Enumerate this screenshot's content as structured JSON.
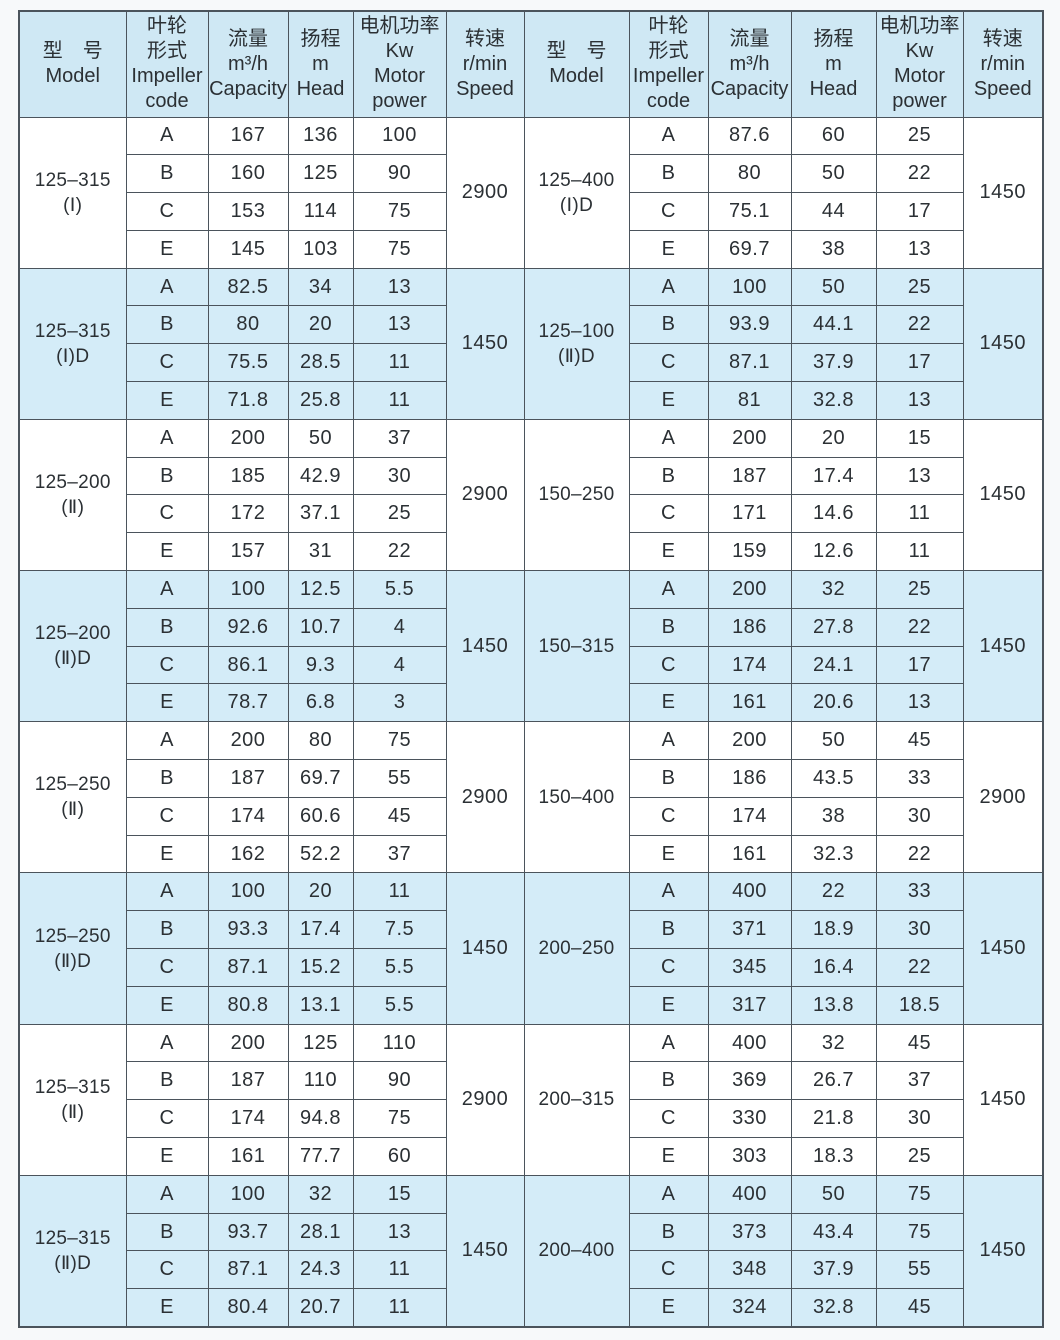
{
  "page": {
    "background": "#f7f9fa"
  },
  "table": {
    "colors": {
      "header_bg": "#cfe8f4",
      "shaded_row_bg": "#d4ecf8",
      "white_row_bg": "#ffffff",
      "border": "#4b545c",
      "text": "#2b3034"
    },
    "header": {
      "cells": [
        {
          "key": "model",
          "lines": [
            "型　号",
            "Model"
          ]
        },
        {
          "key": "impeller",
          "lines": [
            "叶轮",
            "形式",
            "Impeller",
            "code"
          ]
        },
        {
          "key": "capacity",
          "lines": [
            "流量",
            "m³/h",
            "Capacity"
          ]
        },
        {
          "key": "head",
          "lines": [
            "扬程",
            "m",
            "Head"
          ]
        },
        {
          "key": "power",
          "lines": [
            "电机功率",
            "Kw",
            "Motor",
            "power"
          ]
        },
        {
          "key": "speed",
          "lines": [
            "转速",
            "r/min",
            "Speed"
          ]
        }
      ]
    },
    "groups": [
      {
        "shaded": false,
        "left": {
          "model": [
            "125–315",
            "(Ⅰ)"
          ],
          "speed": "2900",
          "rows": [
            [
              "A",
              "167",
              "136",
              "100"
            ],
            [
              "B",
              "160",
              "125",
              "90"
            ],
            [
              "C",
              "153",
              "114",
              "75"
            ],
            [
              "E",
              "145",
              "103",
              "75"
            ]
          ]
        },
        "right": {
          "model": [
            "125–400",
            "(Ⅰ)D"
          ],
          "speed": "1450",
          "rows": [
            [
              "A",
              "87.6",
              "60",
              "25"
            ],
            [
              "B",
              "80",
              "50",
              "22"
            ],
            [
              "C",
              "75.1",
              "44",
              "17"
            ],
            [
              "E",
              "69.7",
              "38",
              "13"
            ]
          ]
        }
      },
      {
        "shaded": true,
        "left": {
          "model": [
            "125–315",
            "(Ⅰ)D"
          ],
          "speed": "1450",
          "rows": [
            [
              "A",
              "82.5",
              "34",
              "13"
            ],
            [
              "B",
              "80",
              "20",
              "13"
            ],
            [
              "C",
              "75.5",
              "28.5",
              "11"
            ],
            [
              "E",
              "71.8",
              "25.8",
              "11"
            ]
          ]
        },
        "right": {
          "model": [
            "125–100",
            "(Ⅱ)D"
          ],
          "speed": "1450",
          "rows": [
            [
              "A",
              "100",
              "50",
              "25"
            ],
            [
              "B",
              "93.9",
              "44.1",
              "22"
            ],
            [
              "C",
              "87.1",
              "37.9",
              "17"
            ],
            [
              "E",
              "81",
              "32.8",
              "13"
            ]
          ]
        }
      },
      {
        "shaded": false,
        "left": {
          "model": [
            "125–200",
            "(Ⅱ)"
          ],
          "speed": "2900",
          "rows": [
            [
              "A",
              "200",
              "50",
              "37"
            ],
            [
              "B",
              "185",
              "42.9",
              "30"
            ],
            [
              "C",
              "172",
              "37.1",
              "25"
            ],
            [
              "E",
              "157",
              "31",
              "22"
            ]
          ]
        },
        "right": {
          "model": [
            "150–250"
          ],
          "speed": "1450",
          "rows": [
            [
              "A",
              "200",
              "20",
              "15"
            ],
            [
              "B",
              "187",
              "17.4",
              "13"
            ],
            [
              "C",
              "171",
              "14.6",
              "11"
            ],
            [
              "E",
              "159",
              "12.6",
              "11"
            ]
          ]
        }
      },
      {
        "shaded": true,
        "left": {
          "model": [
            "125–200",
            "(Ⅱ)D"
          ],
          "speed": "1450",
          "rows": [
            [
              "A",
              "100",
              "12.5",
              "5.5"
            ],
            [
              "B",
              "92.6",
              "10.7",
              "4"
            ],
            [
              "C",
              "86.1",
              "9.3",
              "4"
            ],
            [
              "E",
              "78.7",
              "6.8",
              "3"
            ]
          ]
        },
        "right": {
          "model": [
            "150–315"
          ],
          "speed": "1450",
          "rows": [
            [
              "A",
              "200",
              "32",
              "25"
            ],
            [
              "B",
              "186",
              "27.8",
              "22"
            ],
            [
              "C",
              "174",
              "24.1",
              "17"
            ],
            [
              "E",
              "161",
              "20.6",
              "13"
            ]
          ]
        }
      },
      {
        "shaded": false,
        "left": {
          "model": [
            "125–250",
            "(Ⅱ)"
          ],
          "speed": "2900",
          "rows": [
            [
              "A",
              "200",
              "80",
              "75"
            ],
            [
              "B",
              "187",
              "69.7",
              "55"
            ],
            [
              "C",
              "174",
              "60.6",
              "45"
            ],
            [
              "E",
              "162",
              "52.2",
              "37"
            ]
          ]
        },
        "right": {
          "model": [
            "150–400"
          ],
          "speed": "2900",
          "rows": [
            [
              "A",
              "200",
              "50",
              "45"
            ],
            [
              "B",
              "186",
              "43.5",
              "33"
            ],
            [
              "C",
              "174",
              "38",
              "30"
            ],
            [
              "E",
              "161",
              "32.3",
              "22"
            ]
          ]
        }
      },
      {
        "shaded": true,
        "left": {
          "model": [
            "125–250",
            "(Ⅱ)D"
          ],
          "speed": "1450",
          "rows": [
            [
              "A",
              "100",
              "20",
              "11"
            ],
            [
              "B",
              "93.3",
              "17.4",
              "7.5"
            ],
            [
              "C",
              "87.1",
              "15.2",
              "5.5"
            ],
            [
              "E",
              "80.8",
              "13.1",
              "5.5"
            ]
          ]
        },
        "right": {
          "model": [
            "200–250"
          ],
          "speed": "1450",
          "rows": [
            [
              "A",
              "400",
              "22",
              "33"
            ],
            [
              "B",
              "371",
              "18.9",
              "30"
            ],
            [
              "C",
              "345",
              "16.4",
              "22"
            ],
            [
              "E",
              "317",
              "13.8",
              "18.5"
            ]
          ]
        }
      },
      {
        "shaded": false,
        "left": {
          "model": [
            "125–315",
            "(Ⅱ)"
          ],
          "speed": "2900",
          "rows": [
            [
              "A",
              "200",
              "125",
              "110"
            ],
            [
              "B",
              "187",
              "110",
              "90"
            ],
            [
              "C",
              "174",
              "94.8",
              "75"
            ],
            [
              "E",
              "161",
              "77.7",
              "60"
            ]
          ]
        },
        "right": {
          "model": [
            "200–315"
          ],
          "speed": "1450",
          "rows": [
            [
              "A",
              "400",
              "32",
              "45"
            ],
            [
              "B",
              "369",
              "26.7",
              "37"
            ],
            [
              "C",
              "330",
              "21.8",
              "30"
            ],
            [
              "E",
              "303",
              "18.3",
              "25"
            ]
          ]
        }
      },
      {
        "shaded": true,
        "left": {
          "model": [
            "125–315",
            "(Ⅱ)D"
          ],
          "speed": "1450",
          "rows": [
            [
              "A",
              "100",
              "32",
              "15"
            ],
            [
              "B",
              "93.7",
              "28.1",
              "13"
            ],
            [
              "C",
              "87.1",
              "24.3",
              "11"
            ],
            [
              "E",
              "80.4",
              "20.7",
              "11"
            ]
          ]
        },
        "right": {
          "model": [
            "200–400"
          ],
          "speed": "1450",
          "rows": [
            [
              "A",
              "400",
              "50",
              "75"
            ],
            [
              "B",
              "373",
              "43.4",
              "75"
            ],
            [
              "C",
              "348",
              "37.9",
              "55"
            ],
            [
              "E",
              "324",
              "32.8",
              "45"
            ]
          ]
        }
      }
    ]
  }
}
